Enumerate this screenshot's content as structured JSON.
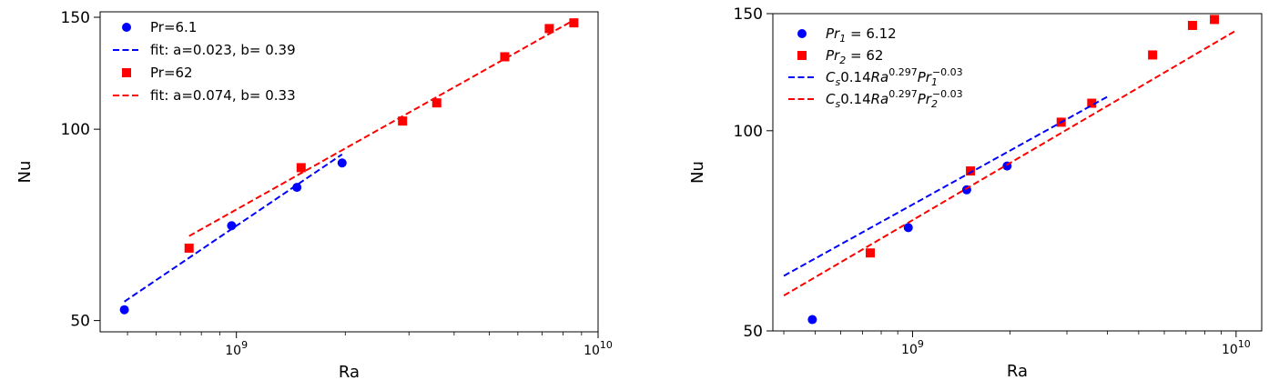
{
  "chart_data": [
    {
      "type": "scatter",
      "xlabel": "Ra",
      "ylabel": "Nu",
      "xscale": "log",
      "yscale": "log",
      "xlim": [
        420000000,
        10000000000
      ],
      "ylim": [
        48,
        153
      ],
      "x_ticks": [
        {
          "value": 1000000000,
          "base": "10",
          "exp": "9"
        },
        {
          "value": 10000000000,
          "base": "10",
          "exp": "10"
        }
      ],
      "y_ticks": [
        {
          "value": 50,
          "label": "50"
        },
        {
          "value": 100,
          "label": "100"
        },
        {
          "value": 150,
          "label": "150"
        }
      ],
      "legend_position": "top-left",
      "series": [
        {
          "name": "Pr=6.1",
          "kind": "points",
          "marker": "circle",
          "color": "#0000ff",
          "x": [
            490000000,
            970000000,
            1470000000,
            1960000000
          ],
          "y": [
            52,
            70.5,
            81,
            88.5
          ]
        },
        {
          "name": "fit: a=0.023, b= 0.39",
          "kind": "line",
          "dash": true,
          "color": "#0000ff",
          "x": [
            490000000,
            1960000000
          ],
          "y": [
            53.55,
            91.3
          ]
        },
        {
          "name": "Pr=62",
          "kind": "points",
          "marker": "square",
          "color": "#ff0000",
          "x": [
            740000000,
            1510000000,
            2880000000,
            3580000000,
            5520000000,
            7330000000,
            8570000000
          ],
          "y": [
            65,
            87,
            103,
            110,
            130,
            144,
            147
          ]
        },
        {
          "name": "fit: a=0.074, b= 0.33",
          "kind": "line",
          "dash": true,
          "color": "#ff0000",
          "x": [
            740000000,
            8570000000
          ],
          "y": [
            67.9,
            148.5
          ]
        }
      ]
    },
    {
      "type": "scatter",
      "xlabel": "Ra",
      "ylabel": "Nu",
      "xscale": "log",
      "yscale": "log",
      "xlim": [
        370000000,
        12000000000
      ],
      "ylim": [
        50,
        150
      ],
      "x_ticks": [
        {
          "value": 1000000000,
          "base": "10",
          "exp": "9"
        },
        {
          "value": 10000000000,
          "base": "10",
          "exp": "10"
        }
      ],
      "y_ticks": [
        {
          "value": 50,
          "label": "50"
        },
        {
          "value": 100,
          "label": "100"
        },
        {
          "value": 150,
          "label": "150"
        }
      ],
      "legend_position": "top-left",
      "series": [
        {
          "name": "Pr_1 = 6.12",
          "kind": "points",
          "marker": "circle",
          "color": "#0000ff",
          "legend": {
            "var": "Pr",
            "sub": "1",
            "rest": " = 6.12"
          },
          "x": [
            490000000,
            970000000,
            1470000000,
            1960000000
          ],
          "y": [
            52,
            71.5,
            81.5,
            88.5
          ]
        },
        {
          "name": "Pr_2 = 62",
          "kind": "points",
          "marker": "square",
          "color": "#ff0000",
          "legend": {
            "var": "Pr",
            "sub": "2",
            "rest": " = 62"
          },
          "x": [
            740000000,
            1510000000,
            2880000000,
            3580000000,
            5520000000,
            7330000000,
            8570000000
          ],
          "y": [
            65.5,
            87,
            103,
            110,
            130,
            144,
            147
          ]
        },
        {
          "name": "C_s 0.14 Ra^0.297 Pr_1^-0.03",
          "kind": "line",
          "dash": true,
          "color": "#0000ff",
          "legend": {
            "c": "C",
            "cs": "s",
            "mid": "0.14",
            "ra": "Ra",
            "raexp": "0.297",
            "pr": "Pr",
            "prsub": "1",
            "prexp": "−0.03"
          },
          "x": [
            400000000,
            4000000000
          ],
          "y": [
            60.5,
            112.5
          ]
        },
        {
          "name": "C_s 0.14 Ra^0.297 Pr_2^-0.03",
          "kind": "line",
          "dash": true,
          "color": "#ff0000",
          "legend": {
            "c": "C",
            "cs": "s",
            "mid": "0.14",
            "ra": "Ra",
            "raexp": "0.297",
            "pr": "Pr",
            "prsub": "2",
            "prexp": "−0.03"
          },
          "x": [
            400000000,
            10000000000
          ],
          "y": [
            56.5,
            141.5
          ]
        }
      ]
    }
  ]
}
